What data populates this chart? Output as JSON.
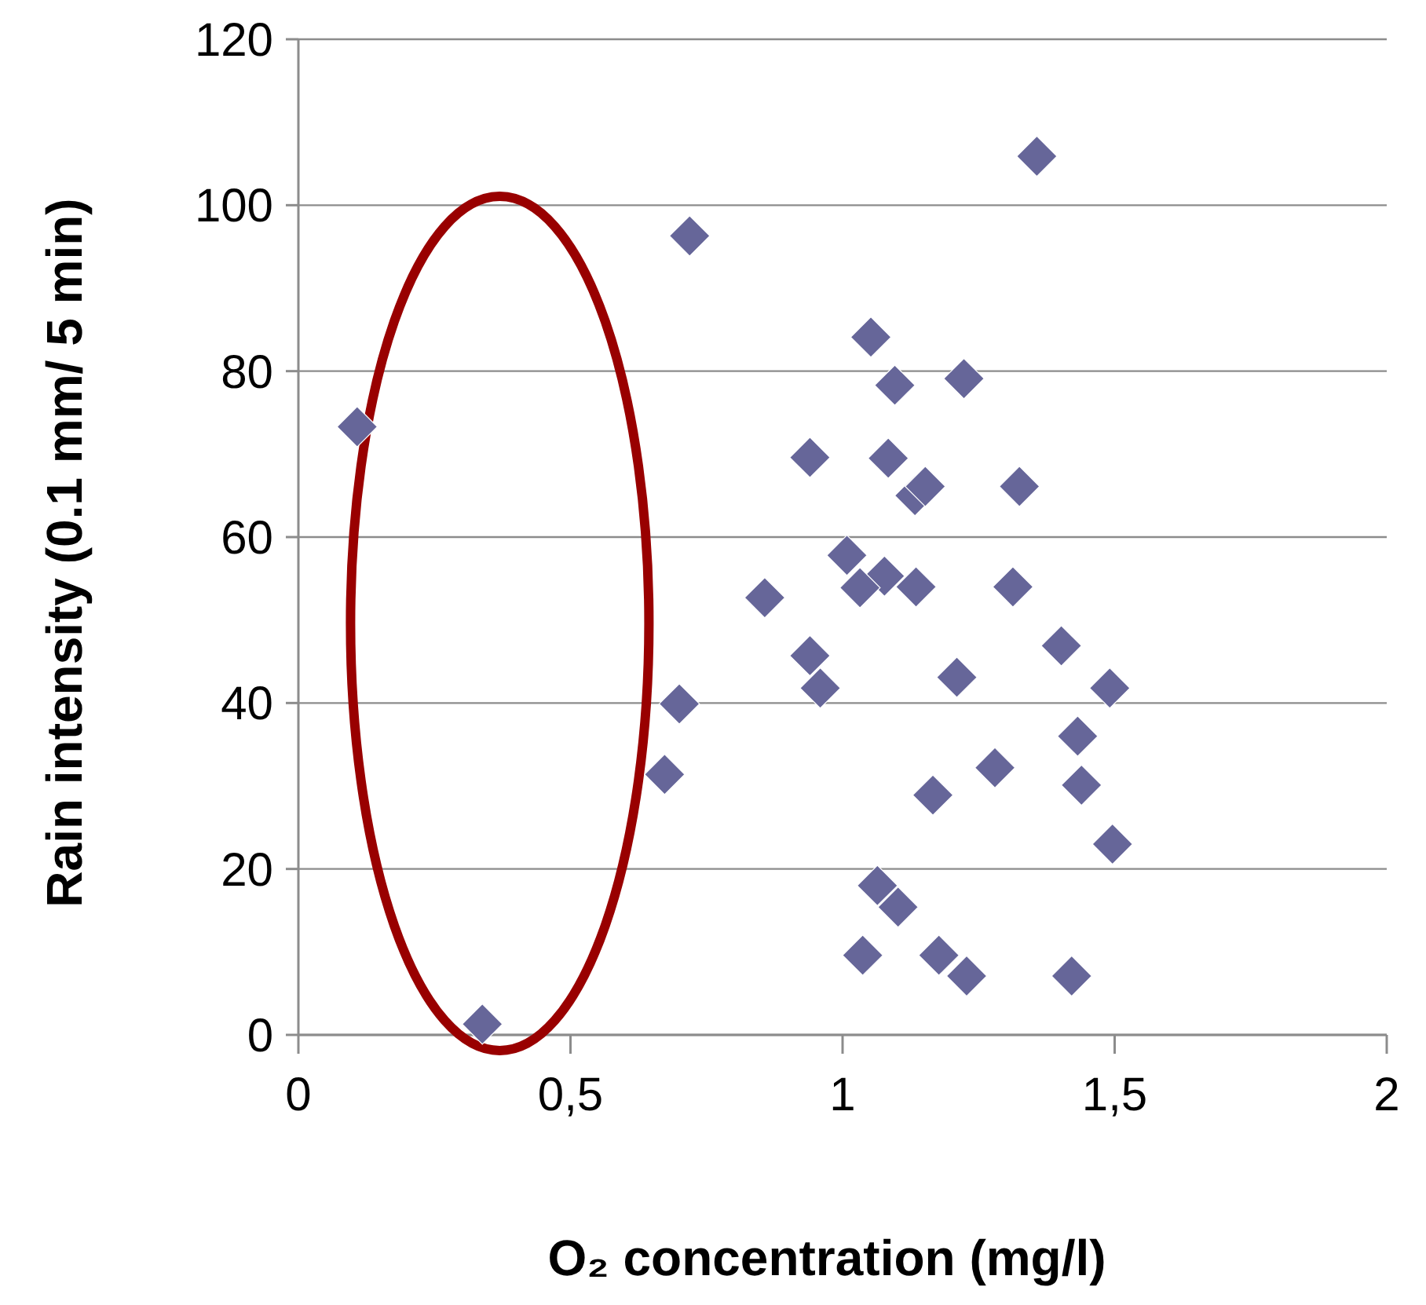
{
  "chart_data": {
    "type": "scatter",
    "xlabel": "O₂ concentration (mg/l)",
    "ylabel": "Rain intensity (0.1 mm/ 5 min)",
    "xlim": [
      0,
      2
    ],
    "xticks": [
      0,
      {
        "value": 0.5,
        "label": "0,5"
      },
      1,
      {
        "value": 1.5,
        "label": "1,5"
      },
      2
    ],
    "ylim": [
      0,
      120
    ],
    "yticks": [
      0,
      20,
      40,
      60,
      80,
      100,
      120
    ],
    "grid": "y",
    "marker": "diamond",
    "series": [
      {
        "color": "#666699",
        "x": [
          0.108,
          0.338,
          0.719,
          0.7,
          0.673,
          0.94,
          0.857,
          0.94,
          0.959,
          1.357,
          1.052,
          1.096,
          1.223,
          1.084,
          1.152,
          1.133,
          1.325,
          1.008,
          1.032,
          1.077,
          1.135,
          1.313,
          1.402,
          1.491,
          1.21,
          1.432,
          1.28,
          1.439,
          1.166,
          1.496,
          1.064,
          1.102,
          1.037,
          1.177,
          1.228,
          1.421
        ],
        "values": [
          73.3,
          1.3,
          96.3,
          39.9,
          31.4,
          69.6,
          52.7,
          45.7,
          41.8,
          105.9,
          84.1,
          78.3,
          79.1,
          69.5,
          66.1,
          65.0,
          66.1,
          57.8,
          53.9,
          55.3,
          54.0,
          54.0,
          46.9,
          41.8,
          43.1,
          36.0,
          32.2,
          30.1,
          28.9,
          23.0,
          18.0,
          15.4,
          9.6,
          9.6,
          7.1,
          7.1
        ]
      }
    ]
  }
}
